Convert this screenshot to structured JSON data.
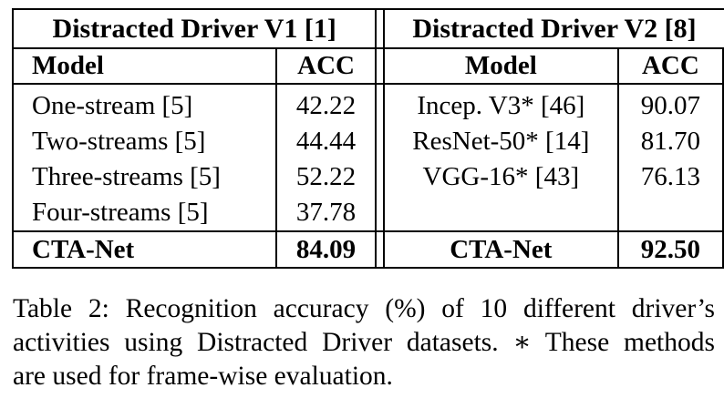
{
  "table": {
    "left_title": "Distracted Driver V1 [1]",
    "right_title": "Distracted Driver V2 [8]",
    "headers": {
      "left_model": "Model",
      "left_acc": "ACC",
      "right_model": "Model",
      "right_acc": "ACC"
    },
    "rows": [
      {
        "left_model": "One-stream [5]",
        "left_acc": "42.22",
        "right_model": "Incep. V3* [46]",
        "right_acc": "90.07"
      },
      {
        "left_model": "Two-streams [5]",
        "left_acc": "44.44",
        "right_model": "ResNet-50* [14]",
        "right_acc": "81.70"
      },
      {
        "left_model": "Three-streams [5]",
        "left_acc": "52.22",
        "right_model": "VGG-16* [43]",
        "right_acc": "76.13"
      },
      {
        "left_model": "Four-streams [5]",
        "left_acc": "37.78",
        "right_model": "",
        "right_acc": ""
      }
    ],
    "final": {
      "left_model": "CTA-Net",
      "left_acc": "84.09",
      "right_model": "CTA-Net",
      "right_acc": "92.50"
    }
  },
  "caption": {
    "line1": "Table 2: Recognition accuracy (%) of 10 different driver’s",
    "line2": "activities using Distracted Driver datasets. ∗ These methods",
    "line3": "are used for frame-wise evaluation."
  }
}
